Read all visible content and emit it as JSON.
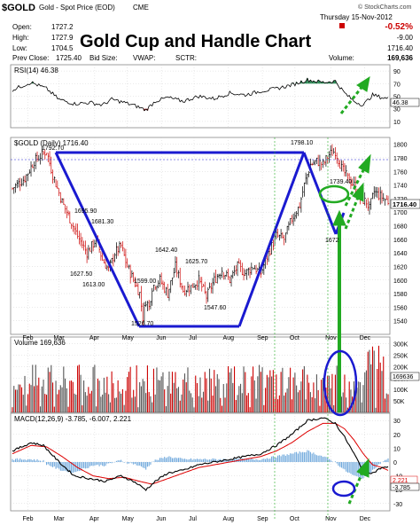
{
  "header": {
    "symbol": "$GOLD",
    "description": "Gold - Spot Price (EOD)",
    "exchange": "CME",
    "copyright": "© StockCharts.com",
    "date": "Thursday 15-Nov-2012",
    "open_label": "Open:",
    "open_value": "1727.2",
    "high_label": "High:",
    "high_value": "1727.9",
    "low_label": "Low:",
    "low_value": "1704.5",
    "prev_close_label": "Prev Close:",
    "prev_close_value": "1725.40",
    "bid_size_label": "Bid Size:",
    "vwap_label": "VWAP:",
    "sctr_label": "SCTR:",
    "change_pct": "-0.52%",
    "change_value": "-9.00",
    "last_value": "1716.40",
    "volume_label": "Volume:",
    "volume_value": "169,636"
  },
  "overlay_title": "Gold Cup and Handle Chart",
  "colors": {
    "grid": "#c8c8c8",
    "up": "#000000",
    "down": "#cc0000",
    "pattern_line": "#1a1ad0",
    "arrow_green": "#22aa22",
    "macd_line": "#000000",
    "signal_line": "#dd0000",
    "histogram": "#6fa8dc",
    "rsi_fill_high": "#2e8b57",
    "rsi_fill_low": "#b22222"
  },
  "panels": {
    "rsi_label": "RSI(14) 46.38",
    "rsi_value_tag": "46.38",
    "price_label": "$GOLD (Daily) 1716.40",
    "price_value_tag": "1716.40",
    "volume_label": "Volume 169,636",
    "volume_value_tag": "169636",
    "macd_label": "MACD(12,26,9) -3.785, -6.007, 2.221",
    "macd_tag_1": "2.221",
    "macd_tag_2": "-3.785"
  },
  "chart_data": {
    "type": "candlestick",
    "months": [
      "Feb",
      "Mar",
      "Apr",
      "May",
      "Jun",
      "Jul",
      "Aug",
      "Sep",
      "Oct",
      "Nov",
      "Dec"
    ],
    "price_axis": {
      "min": 1520,
      "max": 1810,
      "ticks": [
        1540,
        1560,
        1580,
        1600,
        1620,
        1640,
        1660,
        1680,
        1700,
        1720,
        1740,
        1760,
        1780,
        1800
      ]
    },
    "rsi_axis": {
      "ticks": [
        10,
        30,
        50,
        70,
        90
      ]
    },
    "volume_axis": {
      "ticks": [
        "50K",
        "100K",
        "150K",
        "200K",
        "250K",
        "300K"
      ]
    },
    "macd_axis": {
      "ticks": [
        -30,
        -20,
        -10,
        0,
        10,
        20,
        30
      ]
    },
    "annotations": [
      "1798.10",
      "1695.90",
      "1681.30",
      "1627.50",
      "1613.00",
      "1642.40",
      "1599.00",
      "1625.70",
      "1547.60",
      "1526.70",
      "1739.40",
      "1672"
    ],
    "close_anchors": [
      [
        0,
        1735
      ],
      [
        8,
        1750
      ],
      [
        14,
        1775
      ],
      [
        22,
        1790
      ],
      [
        26,
        1755
      ],
      [
        32,
        1715
      ],
      [
        38,
        1685
      ],
      [
        42,
        1665
      ],
      [
        48,
        1640
      ],
      [
        54,
        1660
      ],
      [
        58,
        1630
      ],
      [
        62,
        1615
      ],
      [
        66,
        1640
      ],
      [
        70,
        1650
      ],
      [
        74,
        1620
      ],
      [
        78,
        1600
      ],
      [
        82,
        1580
      ],
      [
        84,
        1545
      ],
      [
        86,
        1570
      ],
      [
        88,
        1560
      ],
      [
        90,
        1590
      ],
      [
        95,
        1600
      ],
      [
        100,
        1580
      ],
      [
        105,
        1620
      ],
      [
        110,
        1585
      ],
      [
        115,
        1590
      ],
      [
        120,
        1600
      ],
      [
        125,
        1575
      ],
      [
        130,
        1600
      ],
      [
        135,
        1615
      ],
      [
        140,
        1600
      ],
      [
        145,
        1620
      ],
      [
        150,
        1610
      ],
      [
        155,
        1620
      ],
      [
        160,
        1610
      ],
      [
        165,
        1640
      ],
      [
        170,
        1665
      ],
      [
        175,
        1660
      ],
      [
        180,
        1690
      ],
      [
        185,
        1710
      ],
      [
        188,
        1740
      ],
      [
        192,
        1770
      ],
      [
        196,
        1775
      ],
      [
        200,
        1770
      ],
      [
        204,
        1785
      ],
      [
        208,
        1790
      ],
      [
        212,
        1765
      ],
      [
        216,
        1750
      ],
      [
        220,
        1740
      ],
      [
        224,
        1720
      ],
      [
        228,
        1715
      ],
      [
        230,
        1705
      ],
      [
        233,
        1730
      ],
      [
        236,
        1725
      ],
      [
        239,
        1720
      ],
      [
        242,
        1716
      ]
    ],
    "rsi_anchors": [
      [
        0,
        60
      ],
      [
        12,
        72
      ],
      [
        22,
        62
      ],
      [
        30,
        45
      ],
      [
        40,
        38
      ],
      [
        50,
        40
      ],
      [
        58,
        36
      ],
      [
        64,
        45
      ],
      [
        72,
        40
      ],
      [
        80,
        34
      ],
      [
        86,
        28
      ],
      [
        92,
        42
      ],
      [
        100,
        48
      ],
      [
        110,
        42
      ],
      [
        120,
        50
      ],
      [
        130,
        46
      ],
      [
        140,
        55
      ],
      [
        150,
        52
      ],
      [
        160,
        58
      ],
      [
        170,
        62
      ],
      [
        180,
        68
      ],
      [
        190,
        76
      ],
      [
        200,
        72
      ],
      [
        208,
        74
      ],
      [
        214,
        55
      ],
      [
        220,
        42
      ],
      [
        226,
        36
      ],
      [
        232,
        52
      ],
      [
        238,
        48
      ],
      [
        242,
        46
      ]
    ],
    "macd_anchors": [
      [
        0,
        8
      ],
      [
        12,
        14
      ],
      [
        20,
        12
      ],
      [
        30,
        0
      ],
      [
        40,
        -10
      ],
      [
        50,
        -12
      ],
      [
        60,
        -14
      ],
      [
        70,
        -10
      ],
      [
        78,
        -14
      ],
      [
        86,
        -20
      ],
      [
        92,
        -14
      ],
      [
        100,
        -8
      ],
      [
        110,
        -6
      ],
      [
        120,
        -2
      ],
      [
        130,
        0
      ],
      [
        140,
        2
      ],
      [
        150,
        4
      ],
      [
        160,
        6
      ],
      [
        170,
        12
      ],
      [
        180,
        20
      ],
      [
        190,
        30
      ],
      [
        200,
        32
      ],
      [
        208,
        28
      ],
      [
        214,
        18
      ],
      [
        220,
        6
      ],
      [
        226,
        -6
      ],
      [
        232,
        -8
      ],
      [
        238,
        -4
      ],
      [
        242,
        -4
      ]
    ],
    "signal_anchors": [
      [
        0,
        6
      ],
      [
        12,
        12
      ],
      [
        22,
        11
      ],
      [
        32,
        4
      ],
      [
        42,
        -4
      ],
      [
        52,
        -10
      ],
      [
        62,
        -12
      ],
      [
        72,
        -11
      ],
      [
        82,
        -14
      ],
      [
        90,
        -16
      ],
      [
        100,
        -12
      ],
      [
        110,
        -8
      ],
      [
        120,
        -4
      ],
      [
        130,
        -2
      ],
      [
        140,
        0
      ],
      [
        150,
        2
      ],
      [
        160,
        4
      ],
      [
        170,
        8
      ],
      [
        180,
        14
      ],
      [
        190,
        22
      ],
      [
        200,
        28
      ],
      [
        208,
        28
      ],
      [
        214,
        24
      ],
      [
        220,
        16
      ],
      [
        226,
        6
      ],
      [
        232,
        -2
      ],
      [
        238,
        -4
      ],
      [
        242,
        -6
      ]
    ]
  }
}
